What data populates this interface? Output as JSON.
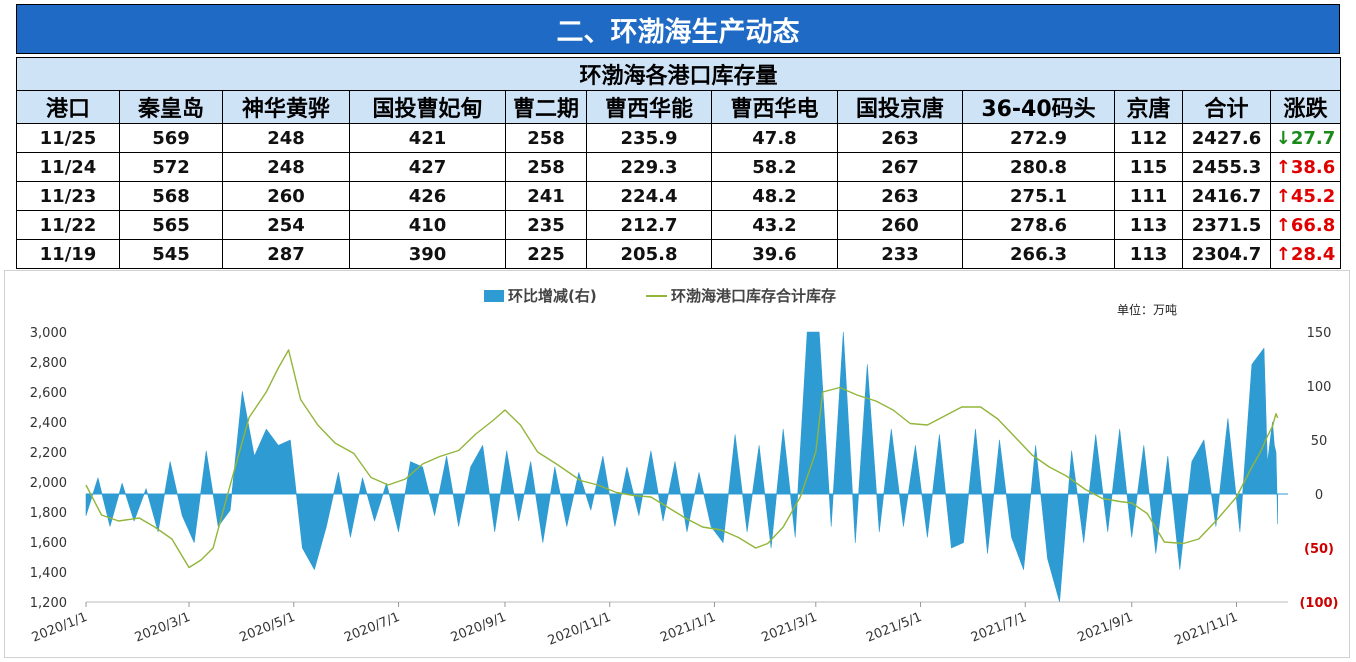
{
  "banner": {
    "title": "二、环渤海生产动态"
  },
  "table": {
    "title": "环渤海各港口库存量",
    "headers": [
      "港口",
      "秦皇岛",
      "神华黄骅",
      "国投曹妃甸",
      "曹二期",
      "曹西华能",
      "曹西华电",
      "国投京唐",
      "36-40码头",
      "京唐",
      "合计",
      "涨跌"
    ],
    "rows": [
      {
        "date": "11/25",
        "cells": [
          "569",
          "248",
          "421",
          "258",
          "235.9",
          "47.8",
          "263",
          "272.9",
          "112",
          "2427.6"
        ],
        "change": "↓27.7",
        "dir": "down"
      },
      {
        "date": "11/24",
        "cells": [
          "572",
          "248",
          "427",
          "258",
          "229.3",
          "58.2",
          "267",
          "280.8",
          "115",
          "2455.3"
        ],
        "change": "↑38.6",
        "dir": "up"
      },
      {
        "date": "11/23",
        "cells": [
          "568",
          "260",
          "426",
          "241",
          "224.4",
          "48.2",
          "263",
          "275.1",
          "111",
          "2416.7"
        ],
        "change": "↑45.2",
        "dir": "up"
      },
      {
        "date": "11/22",
        "cells": [
          "565",
          "254",
          "410",
          "235",
          "212.7",
          "43.2",
          "260",
          "278.6",
          "113",
          "2371.5"
        ],
        "change": "↑66.8",
        "dir": "up"
      },
      {
        "date": "11/19",
        "cells": [
          "545",
          "287",
          "390",
          "225",
          "205.8",
          "39.6",
          "233",
          "266.3",
          "113",
          "2304.7"
        ],
        "change": "↑28.4",
        "dir": "up"
      }
    ]
  },
  "chart_data": {
    "type": "line",
    "legend": [
      "环比增减(右)",
      "环渤海港口库存合计库存"
    ],
    "legend_position": "top-center",
    "unit_note": "单位：万吨",
    "x_ticks": [
      "2020/1/1",
      "2020/3/1",
      "2020/5/1",
      "2020/7/1",
      "2020/9/1",
      "2020/11/1",
      "2021/1/1",
      "2021/3/1",
      "2021/5/1",
      "2021/7/1",
      "2021/9/1",
      "2021/11/1"
    ],
    "x_range": [
      "2020/1/1",
      "2021/11/25"
    ],
    "y_left": {
      "ticks": [
        "3,000",
        "2,800",
        "2,600",
        "2,400",
        "2,200",
        "2,000",
        "1,800",
        "1,600",
        "1,400",
        "1,200"
      ],
      "range": [
        1200,
        3000
      ]
    },
    "y_right": {
      "ticks": [
        "150",
        "100",
        "50",
        "0",
        "(50)",
        "(100)"
      ],
      "range": [
        -100,
        150
      ]
    },
    "colors": {
      "line": "#92b53a",
      "area": "#2e9bd2",
      "neg_tick": "#cc0000"
    },
    "series": [
      {
        "name": "环渤海港口库存合计库存",
        "axis": "left",
        "x": [
          "2020/1/1",
          "2020/1/10",
          "2020/1/20",
          "2020/2/1",
          "2020/2/10",
          "2020/2/20",
          "2020/3/1",
          "2020/3/8",
          "2020/3/15",
          "2020/3/25",
          "2020/4/5",
          "2020/4/15",
          "2020/4/22",
          "2020/4/28",
          "2020/5/5",
          "2020/5/15",
          "2020/5/25",
          "2020/6/5",
          "2020/6/15",
          "2020/6/25",
          "2020/7/5",
          "2020/7/15",
          "2020/7/25",
          "2020/8/5",
          "2020/8/15",
          "2020/8/25",
          "2020/9/1",
          "2020/9/10",
          "2020/9/20",
          "2020/10/1",
          "2020/10/15",
          "2020/10/25",
          "2020/11/5",
          "2020/11/15",
          "2020/11/25",
          "2020/12/5",
          "2020/12/15",
          "2020/12/25",
          "2021/1/5",
          "2021/1/15",
          "2021/1/25",
          "2021/2/1",
          "2021/2/10",
          "2021/2/20",
          "2021/3/1",
          "2021/3/5",
          "2021/3/15",
          "2021/3/25",
          "2021/4/5",
          "2021/4/15",
          "2021/4/25",
          "2021/5/5",
          "2021/5/15",
          "2021/5/25",
          "2021/6/5",
          "2021/6/15",
          "2021/6/25",
          "2021/7/5",
          "2021/7/15",
          "2021/7/25",
          "2021/8/5",
          "2021/8/15",
          "2021/8/25",
          "2021/9/1",
          "2021/9/10",
          "2021/9/20",
          "2021/10/1",
          "2021/10/10",
          "2021/10/20",
          "2021/11/1",
          "2021/11/5",
          "2021/11/10",
          "2021/11/15",
          "2021/11/19",
          "2021/11/22",
          "2021/11/23",
          "2021/11/24",
          "2021/11/25"
        ],
        "values": [
          1980,
          1780,
          1740,
          1760,
          1700,
          1620,
          1430,
          1480,
          1560,
          1980,
          2430,
          2600,
          2760,
          2880,
          2550,
          2380,
          2260,
          2190,
          2030,
          1980,
          2020,
          2120,
          2170,
          2210,
          2320,
          2410,
          2480,
          2380,
          2200,
          2120,
          2010,
          1980,
          1930,
          1910,
          1900,
          1830,
          1760,
          1700,
          1680,
          1630,
          1560,
          1590,
          1700,
          1900,
          2200,
          2600,
          2630,
          2580,
          2540,
          2480,
          2390,
          2380,
          2440,
          2500,
          2500,
          2420,
          2300,
          2180,
          2100,
          2040,
          1950,
          1890,
          1870,
          1860,
          1790,
          1600,
          1590,
          1620,
          1740,
          1900,
          1990,
          2100,
          2200,
          2304.7,
          2371.5,
          2416.7,
          2455.3,
          2427.6
        ]
      },
      {
        "name": "环比增减(右)",
        "axis": "right",
        "x": [
          "2020/1/1",
          "2020/1/8",
          "2020/1/15",
          "2020/1/22",
          "2020/1/29",
          "2020/2/5",
          "2020/2/12",
          "2020/2/19",
          "2020/2/26",
          "2020/3/4",
          "2020/3/11",
          "2020/3/18",
          "2020/3/25",
          "2020/4/1",
          "2020/4/8",
          "2020/4/15",
          "2020/4/22",
          "2020/4/29",
          "2020/5/6",
          "2020/5/13",
          "2020/5/20",
          "2020/5/27",
          "2020/6/3",
          "2020/6/10",
          "2020/6/17",
          "2020/6/24",
          "2020/7/1",
          "2020/7/8",
          "2020/7/15",
          "2020/7/22",
          "2020/7/29",
          "2020/8/5",
          "2020/8/12",
          "2020/8/19",
          "2020/8/26",
          "2020/9/2",
          "2020/9/9",
          "2020/9/16",
          "2020/9/23",
          "2020/9/30",
          "2020/10/7",
          "2020/10/14",
          "2020/10/21",
          "2020/10/28",
          "2020/11/4",
          "2020/11/11",
          "2020/11/18",
          "2020/11/25",
          "2020/12/2",
          "2020/12/9",
          "2020/12/16",
          "2020/12/23",
          "2020/12/30",
          "2021/1/6",
          "2021/1/13",
          "2021/1/20",
          "2021/1/27",
          "2021/2/3",
          "2021/2/10",
          "2021/2/17",
          "2021/2/24",
          "2021/3/3",
          "2021/3/10",
          "2021/3/17",
          "2021/3/24",
          "2021/3/31",
          "2021/4/7",
          "2021/4/14",
          "2021/4/21",
          "2021/4/28",
          "2021/5/5",
          "2021/5/12",
          "2021/5/19",
          "2021/5/26",
          "2021/6/2",
          "2021/6/9",
          "2021/6/16",
          "2021/6/23",
          "2021/6/30",
          "2021/7/7",
          "2021/7/14",
          "2021/7/21",
          "2021/7/28",
          "2021/8/4",
          "2021/8/11",
          "2021/8/18",
          "2021/8/25",
          "2021/9/1",
          "2021/9/8",
          "2021/9/15",
          "2021/9/22",
          "2021/9/29",
          "2021/10/6",
          "2021/10/13",
          "2021/10/20",
          "2021/10/27",
          "2021/11/3",
          "2021/11/10",
          "2021/11/17",
          "2021/11/19",
          "2021/11/22",
          "2021/11/23",
          "2021/11/24",
          "2021/11/25"
        ],
        "values": [
          -20,
          15,
          -30,
          10,
          -25,
          5,
          -35,
          30,
          -20,
          -45,
          40,
          -30,
          -15,
          95,
          35,
          60,
          45,
          50,
          -50,
          -70,
          -30,
          20,
          -40,
          15,
          -25,
          10,
          -35,
          30,
          25,
          -20,
          35,
          -30,
          25,
          45,
          -35,
          40,
          -25,
          30,
          -45,
          25,
          -30,
          20,
          -15,
          35,
          -30,
          25,
          -20,
          40,
          -25,
          30,
          -35,
          20,
          -30,
          -45,
          55,
          -35,
          45,
          -50,
          60,
          -40,
          150,
          200,
          -30,
          160,
          -45,
          120,
          -35,
          60,
          -30,
          45,
          -40,
          55,
          -50,
          -45,
          60,
          -55,
          50,
          -40,
          -70,
          45,
          -60,
          -100,
          40,
          -45,
          55,
          -35,
          60,
          -40,
          45,
          -55,
          35,
          -70,
          30,
          50,
          -30,
          70,
          -35,
          120,
          135,
          28.4,
          66.8,
          45.2,
          38.6,
          -27.7
        ]
      }
    ]
  }
}
